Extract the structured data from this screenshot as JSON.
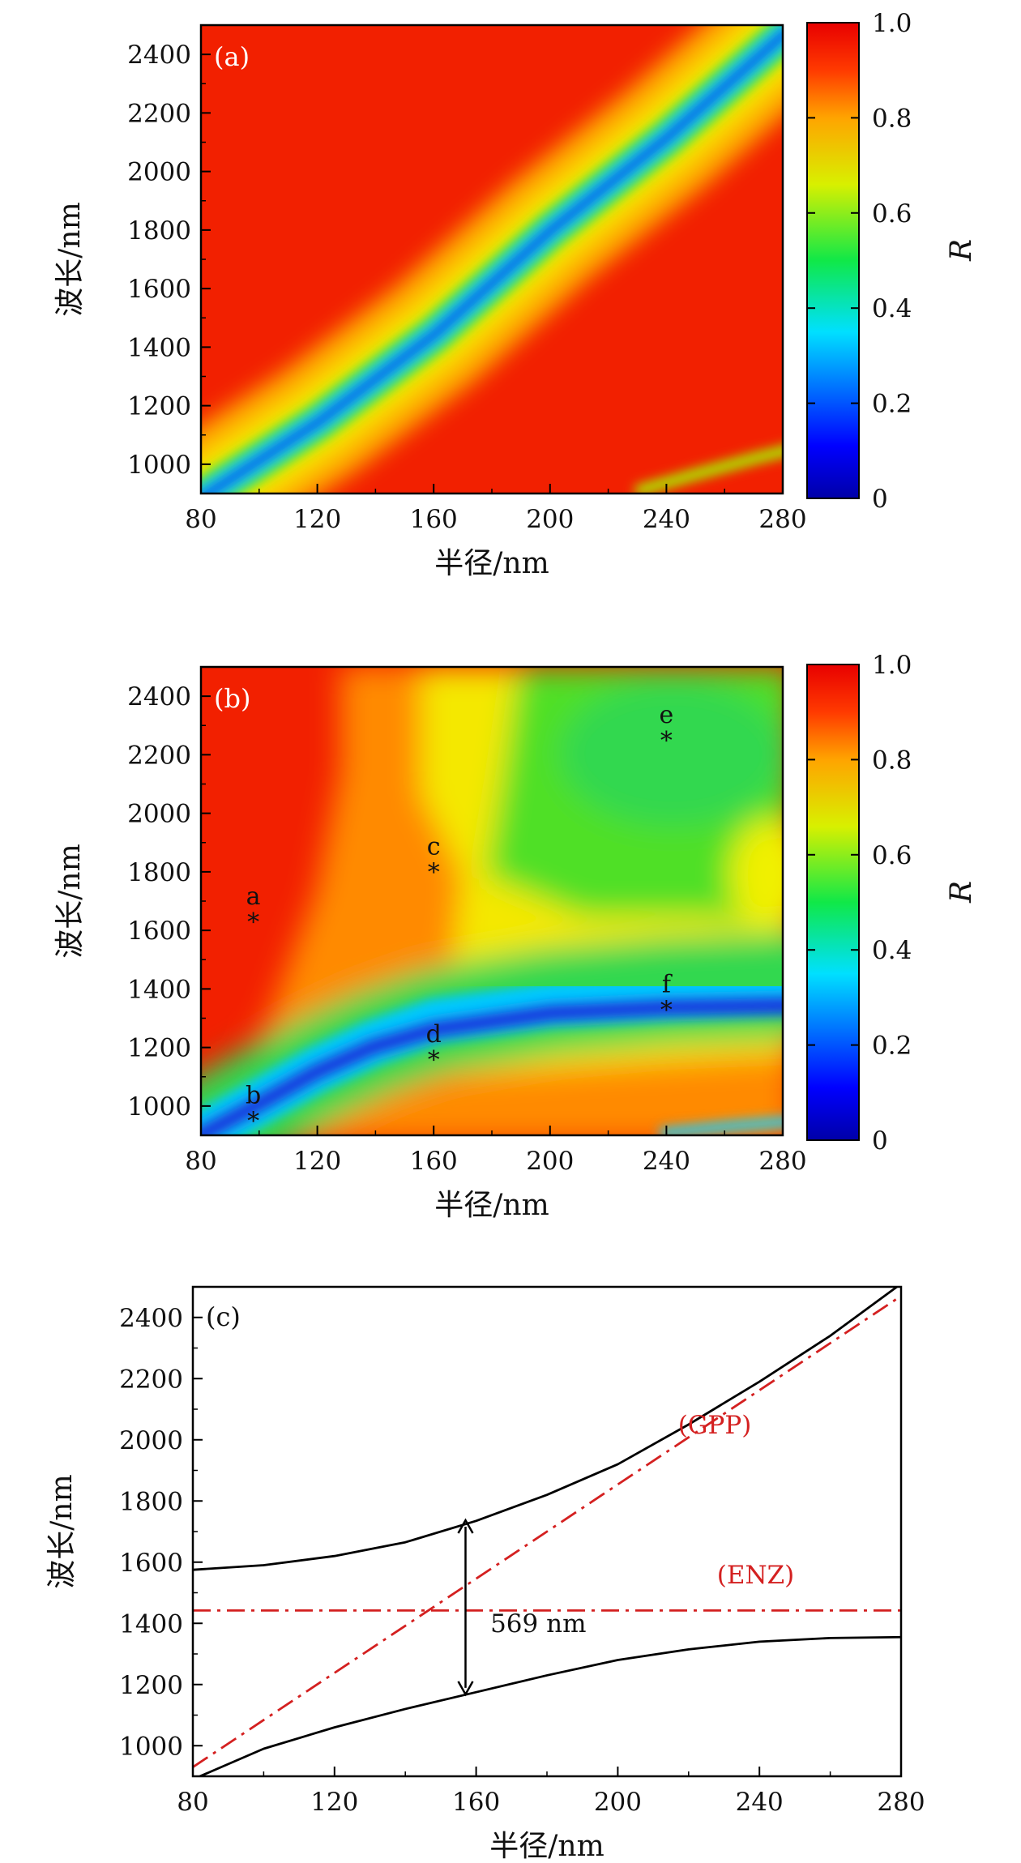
{
  "chart_data": [
    {
      "id": "a",
      "type": "heatmap",
      "panel_label": "(a)",
      "xlabel": "半径/nm",
      "ylabel": "波长/nm",
      "xlim": [
        80,
        280
      ],
      "ylim": [
        900,
        2500
      ],
      "xticks": [
        80,
        120,
        160,
        200,
        240,
        280
      ],
      "yticks": [
        1000,
        1200,
        1400,
        1600,
        1800,
        2000,
        2200,
        2400
      ],
      "colorbar": {
        "label": "R",
        "ticks": [
          0,
          0.2,
          0.4,
          0.6,
          0.8,
          1.0
        ],
        "tick_labels": [
          "0",
          "0.2",
          "0.4",
          "0.6",
          "0.8",
          "1.0"
        ],
        "colormap": "jet"
      },
      "features": [
        {
          "name": "GPP reflectance dip",
          "min_R": 0.1,
          "points": [
            [
              80,
              890
            ],
            [
              120,
              1140
            ],
            [
              160,
              1450
            ],
            [
              200,
              1780
            ],
            [
              240,
              2100
            ],
            [
              280,
              2430
            ]
          ]
        },
        {
          "name": "weak mode",
          "min_R": 0.6,
          "points": [
            [
              230,
              930
            ],
            [
              280,
              1020
            ]
          ]
        }
      ]
    },
    {
      "id": "b",
      "type": "heatmap",
      "panel_label": "(b)",
      "xlabel": "半径/nm",
      "ylabel": "波长/nm",
      "xlim": [
        80,
        280
      ],
      "ylim": [
        900,
        2500
      ],
      "xticks": [
        80,
        120,
        160,
        200,
        240,
        280
      ],
      "yticks": [
        1000,
        1200,
        1400,
        1600,
        1800,
        2000,
        2200,
        2400
      ],
      "colorbar": {
        "label": "R",
        "ticks": [
          0,
          0.2,
          0.4,
          0.6,
          0.8,
          1.0
        ],
        "tick_labels": [
          "0",
          "0.2",
          "0.4",
          "0.6",
          "0.8",
          "1.0"
        ],
        "colormap": "jet"
      },
      "features": [
        {
          "name": "lower polariton dip",
          "min_R": 0.08,
          "points": [
            [
              80,
              900
            ],
            [
              100,
              980
            ],
            [
              120,
              1060
            ],
            [
              140,
              1140
            ],
            [
              160,
              1210
            ],
            [
              200,
              1280
            ],
            [
              240,
              1320
            ],
            [
              280,
              1340
            ]
          ]
        },
        {
          "name": "upper polariton dip",
          "min_R": 0.45,
          "points": [
            [
              160,
              1900
            ],
            [
              200,
              2000
            ],
            [
              240,
              2200
            ],
            [
              280,
              2450
            ]
          ]
        }
      ],
      "markers": [
        {
          "label": "a",
          "x": 98,
          "y": 1650
        },
        {
          "label": "b",
          "x": 98,
          "y": 970
        },
        {
          "label": "c",
          "x": 160,
          "y": 1820
        },
        {
          "label": "d",
          "x": 160,
          "y": 1180
        },
        {
          "label": "e",
          "x": 240,
          "y": 2270
        },
        {
          "label": "f",
          "x": 240,
          "y": 1350
        }
      ]
    },
    {
      "id": "c",
      "type": "line",
      "panel_label": "(c)",
      "xlabel": "半径/nm",
      "ylabel": "波长/nm",
      "xlim": [
        80,
        280
      ],
      "ylim": [
        900,
        2500
      ],
      "xticks": [
        80,
        120,
        160,
        200,
        240,
        280
      ],
      "yticks": [
        1000,
        1200,
        1400,
        1600,
        1800,
        2000,
        2200,
        2400
      ],
      "series": [
        {
          "name": "upper branch",
          "style": "solid",
          "color": "#000000",
          "x": [
            80,
            100,
            120,
            140,
            160,
            180,
            200,
            220,
            240,
            260,
            280
          ],
          "y": [
            1575,
            1590,
            1620,
            1665,
            1735,
            1820,
            1920,
            2050,
            2190,
            2340,
            2510
          ]
        },
        {
          "name": "lower branch",
          "style": "solid",
          "color": "#000000",
          "x": [
            80,
            100,
            120,
            140,
            160,
            180,
            200,
            220,
            240,
            260,
            280
          ],
          "y": [
            890,
            990,
            1060,
            1120,
            1175,
            1230,
            1280,
            1315,
            1340,
            1352,
            1355
          ]
        },
        {
          "name": "(GPP)",
          "style": "dash-dot",
          "color": "#d42020",
          "x": [
            80,
            280
          ],
          "y": [
            930,
            2470
          ]
        },
        {
          "name": "(ENZ)",
          "style": "dash-dot",
          "color": "#d42020",
          "x": [
            80,
            280
          ],
          "y": [
            1442,
            1442
          ]
        }
      ],
      "annotations": [
        {
          "text": "(GPP)",
          "x": 217,
          "y": 2020,
          "color": "#d42020"
        },
        {
          "text": "(ENZ)",
          "x": 228,
          "y": 1530,
          "color": "#d42020"
        },
        {
          "text": "569 nm",
          "x": 164,
          "y": 1372,
          "color": "#000000",
          "arrow": {
            "x": 157,
            "from": 1168,
            "to": 1737
          }
        }
      ]
    }
  ]
}
